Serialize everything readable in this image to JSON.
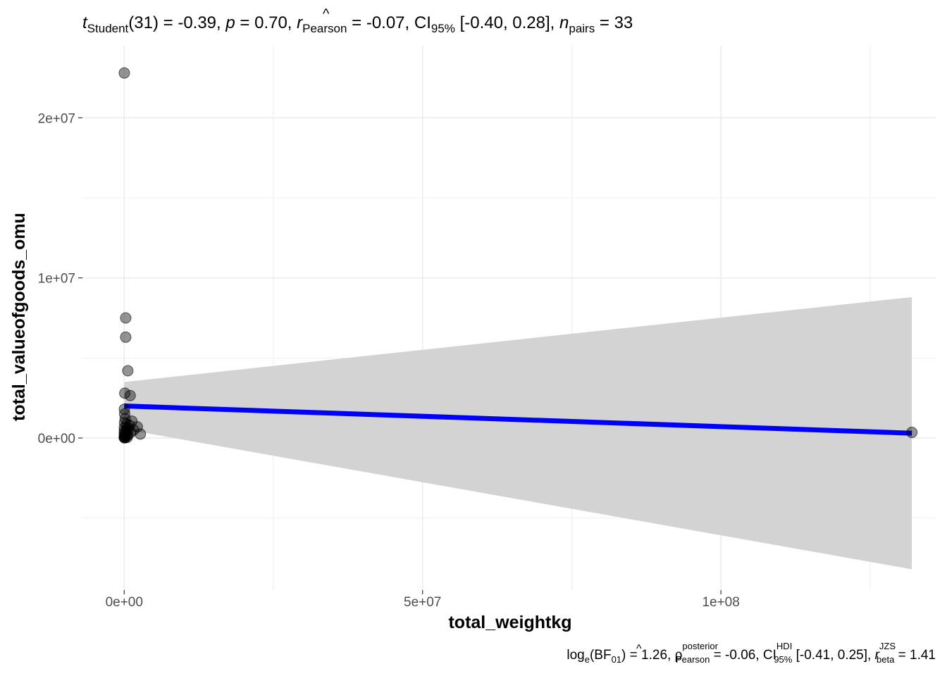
{
  "subtitle": {
    "t_sym": "t",
    "t_sub": "Student",
    "df": "(31)",
    "eq": " = ",
    "t_val": "-0.39, ",
    "p_sym": "p",
    "p_eq": " = ",
    "p_val": "0.70, ",
    "r_hat": "^",
    "r_sym": "r",
    "r_sub": "Pearson",
    "r_eq": " = ",
    "r_val": "-0.07, CI",
    "ci_sub": "95%",
    "ci_val": " [-0.40, 0.28], ",
    "n_sym": "n",
    "n_sub": "pairs",
    "n_eq": " = ",
    "n_val": "33"
  },
  "caption": {
    "log": "log",
    "log_sub": "e",
    "bf_open": "(BF",
    "bf_sub": "01",
    "bf_close": ") = 1.26, ",
    "rho_hat": "^",
    "rho": "ρ",
    "rho_sup": "posterior",
    "rho_sub": "Pearson",
    "rho_val": " = -0.06, CI",
    "ci_sup": "HDI",
    "ci_sub": "95%",
    "ci_val": " [-0.41, 0.25], ",
    "r": "r",
    "r_sup": "JZS",
    "r_sub": "beta",
    "r_val": " = 1.41"
  },
  "chart_data": {
    "type": "scatter",
    "xlabel": "total_weightkg",
    "ylabel": "total_valueofgoods_omu",
    "xlim": [
      -7000000,
      136000000
    ],
    "ylim": [
      -9500000,
      24500000
    ],
    "x_ticks": [
      {
        "value": 0,
        "label": "0e+00"
      },
      {
        "value": 50000000,
        "label": "5e+07"
      },
      {
        "value": 100000000,
        "label": "1e+08"
      }
    ],
    "y_ticks": [
      {
        "value": 0,
        "label": "0e+00"
      },
      {
        "value": 10000000,
        "label": "1e+07"
      },
      {
        "value": 20000000,
        "label": "2e+07"
      }
    ],
    "x_minor_grid": [
      25000000,
      75000000,
      125000000
    ],
    "y_minor_grid": [
      -5000000,
      5000000,
      15000000
    ],
    "grid": true,
    "points": [
      {
        "x": 20000,
        "y": 22800000
      },
      {
        "x": 250000,
        "y": 7500000
      },
      {
        "x": 250000,
        "y": 6300000
      },
      {
        "x": 600000,
        "y": 4200000
      },
      {
        "x": 100000,
        "y": 2800000
      },
      {
        "x": 1000000,
        "y": 2650000
      },
      {
        "x": 30000,
        "y": 1800000
      },
      {
        "x": 80000,
        "y": 1500000
      },
      {
        "x": 150000,
        "y": 1200000
      },
      {
        "x": 1300000,
        "y": 1050000
      },
      {
        "x": 60000,
        "y": 950000
      },
      {
        "x": 400000,
        "y": 850000
      },
      {
        "x": 900000,
        "y": 800000
      },
      {
        "x": 2200000,
        "y": 700000
      },
      {
        "x": 20000,
        "y": 650000
      },
      {
        "x": 500000,
        "y": 600000
      },
      {
        "x": 700000,
        "y": 550000
      },
      {
        "x": 1600000,
        "y": 500000
      },
      {
        "x": 40000,
        "y": 450000
      },
      {
        "x": 300000,
        "y": 400000
      },
      {
        "x": 1100000,
        "y": 350000
      },
      {
        "x": 10000,
        "y": 300000
      },
      {
        "x": 2700000,
        "y": 250000
      },
      {
        "x": 200000,
        "y": 220000
      },
      {
        "x": 600000,
        "y": 180000
      },
      {
        "x": 50000,
        "y": 150000
      },
      {
        "x": 350000,
        "y": 120000
      },
      {
        "x": 90000,
        "y": 90000
      },
      {
        "x": 15000,
        "y": 60000
      },
      {
        "x": 500000,
        "y": 40000
      },
      {
        "x": 5000,
        "y": 20000
      },
      {
        "x": 120000,
        "y": 10000
      },
      {
        "x": 132000000,
        "y": 350000
      }
    ],
    "regression": {
      "x": [
        0,
        132000000
      ],
      "y": [
        2000000,
        300000
      ]
    },
    "confidence_band": {
      "x": [
        0,
        132000000
      ],
      "upper": [
        3500000,
        8800000
      ],
      "lower": [
        550000,
        -8200000
      ]
    },
    "colors": {
      "point_fill": "#000000",
      "line": "#0000ff",
      "band": "#d3d3d3",
      "grid": "#ebebeb",
      "tick_text": "#4d4d4d"
    }
  }
}
